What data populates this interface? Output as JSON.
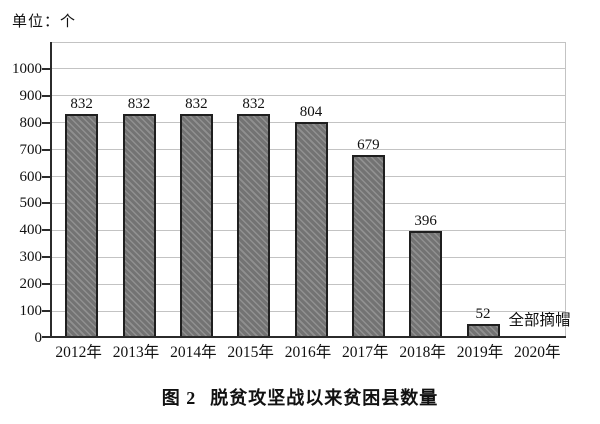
{
  "figure": {
    "unit_label": "单位：个",
    "caption_prefix": "图 2",
    "caption_title": "脱贫攻坚战以来贫困县数量"
  },
  "chart_data": {
    "type": "bar",
    "title": "图 2 脱贫攻坚战以来贫困县数量",
    "unit_label": "单位：个",
    "xlabel": "",
    "ylabel": "",
    "categories": [
      "2012年",
      "2013年",
      "2014年",
      "2015年",
      "2016年",
      "2017年",
      "2018年",
      "2019年",
      "2020年"
    ],
    "values": [
      832,
      832,
      832,
      832,
      804,
      679,
      396,
      52,
      null
    ],
    "data_labels": [
      "832",
      "832",
      "832",
      "832",
      "804",
      "679",
      "396",
      "52",
      ""
    ],
    "annotation": {
      "text": "全部摘帽",
      "category": "2019年",
      "position": "right-of-bar"
    },
    "y_ticks": [
      0,
      100,
      200,
      300,
      400,
      500,
      600,
      700,
      800,
      900,
      1000
    ],
    "ylim": [
      0,
      1100
    ],
    "grid": true,
    "legend": false,
    "colors": {
      "bar_fill": "#737373",
      "bar_hatch": "#909090",
      "bar_border": "#1f1f1f",
      "axis": "#2b2b2b",
      "grid": "#c3c3c3",
      "text": "#111111"
    }
  }
}
